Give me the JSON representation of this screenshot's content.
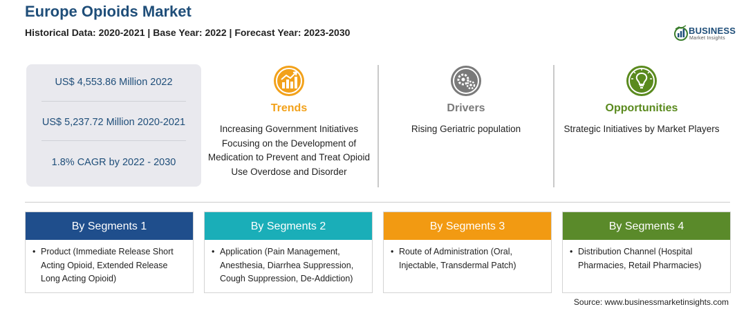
{
  "header": {
    "title": "Europe Opioids Market",
    "subtitle": "Historical Data: 2020-2021 | Base Year: 2022 | Forecast Year: 2023-2030"
  },
  "logo": {
    "name": "BUSINESS",
    "sub": "Market Insights"
  },
  "stats": [
    {
      "text": "US$ 4,553.86 Million 2022"
    },
    {
      "text": "US$ 5,237.72 Million 2020-2021"
    },
    {
      "text": "1.8% CAGR by 2022 - 2030"
    }
  ],
  "columns": [
    {
      "title": "Trends",
      "icon": "growth-chart-icon",
      "color": "#f2a11a",
      "text": "Increasing Government Initiatives Focusing on the Development of Medication to Prevent and Treat Opioid Use Overdose and Disorder"
    },
    {
      "title": "Drivers",
      "icon": "gears-icon",
      "color": "#7a7a7a",
      "text": "Rising Geriatric population"
    },
    {
      "title": "Opportunities",
      "icon": "lightbulb-icon",
      "color": "#5a8a1e",
      "text": "Strategic Initiatives by Market Players"
    }
  ],
  "segments": [
    {
      "title": "By Segments 1",
      "color": "#1f4e8c",
      "text": "Product (Immediate Release Short Acting Opioid, Extended Release Long Acting Opioid)"
    },
    {
      "title": "By Segments 2",
      "color": "#1aaeb8",
      "text": "Application (Pain Management, Anesthesia, Diarrhea Suppression, Cough Suppression, De-Addiction)"
    },
    {
      "title": "By Segments 3",
      "color": "#f29a12",
      "text": "Route of Administration (Oral, Injectable, Transdermal Patch)"
    },
    {
      "title": "By Segments 4",
      "color": "#5a8a2a",
      "text": "Distribution Channel (Hospital Pharmacies, Retail Pharmacies)"
    }
  ],
  "bullet": "•",
  "source": "Source: www.businessmarketinsights.com"
}
